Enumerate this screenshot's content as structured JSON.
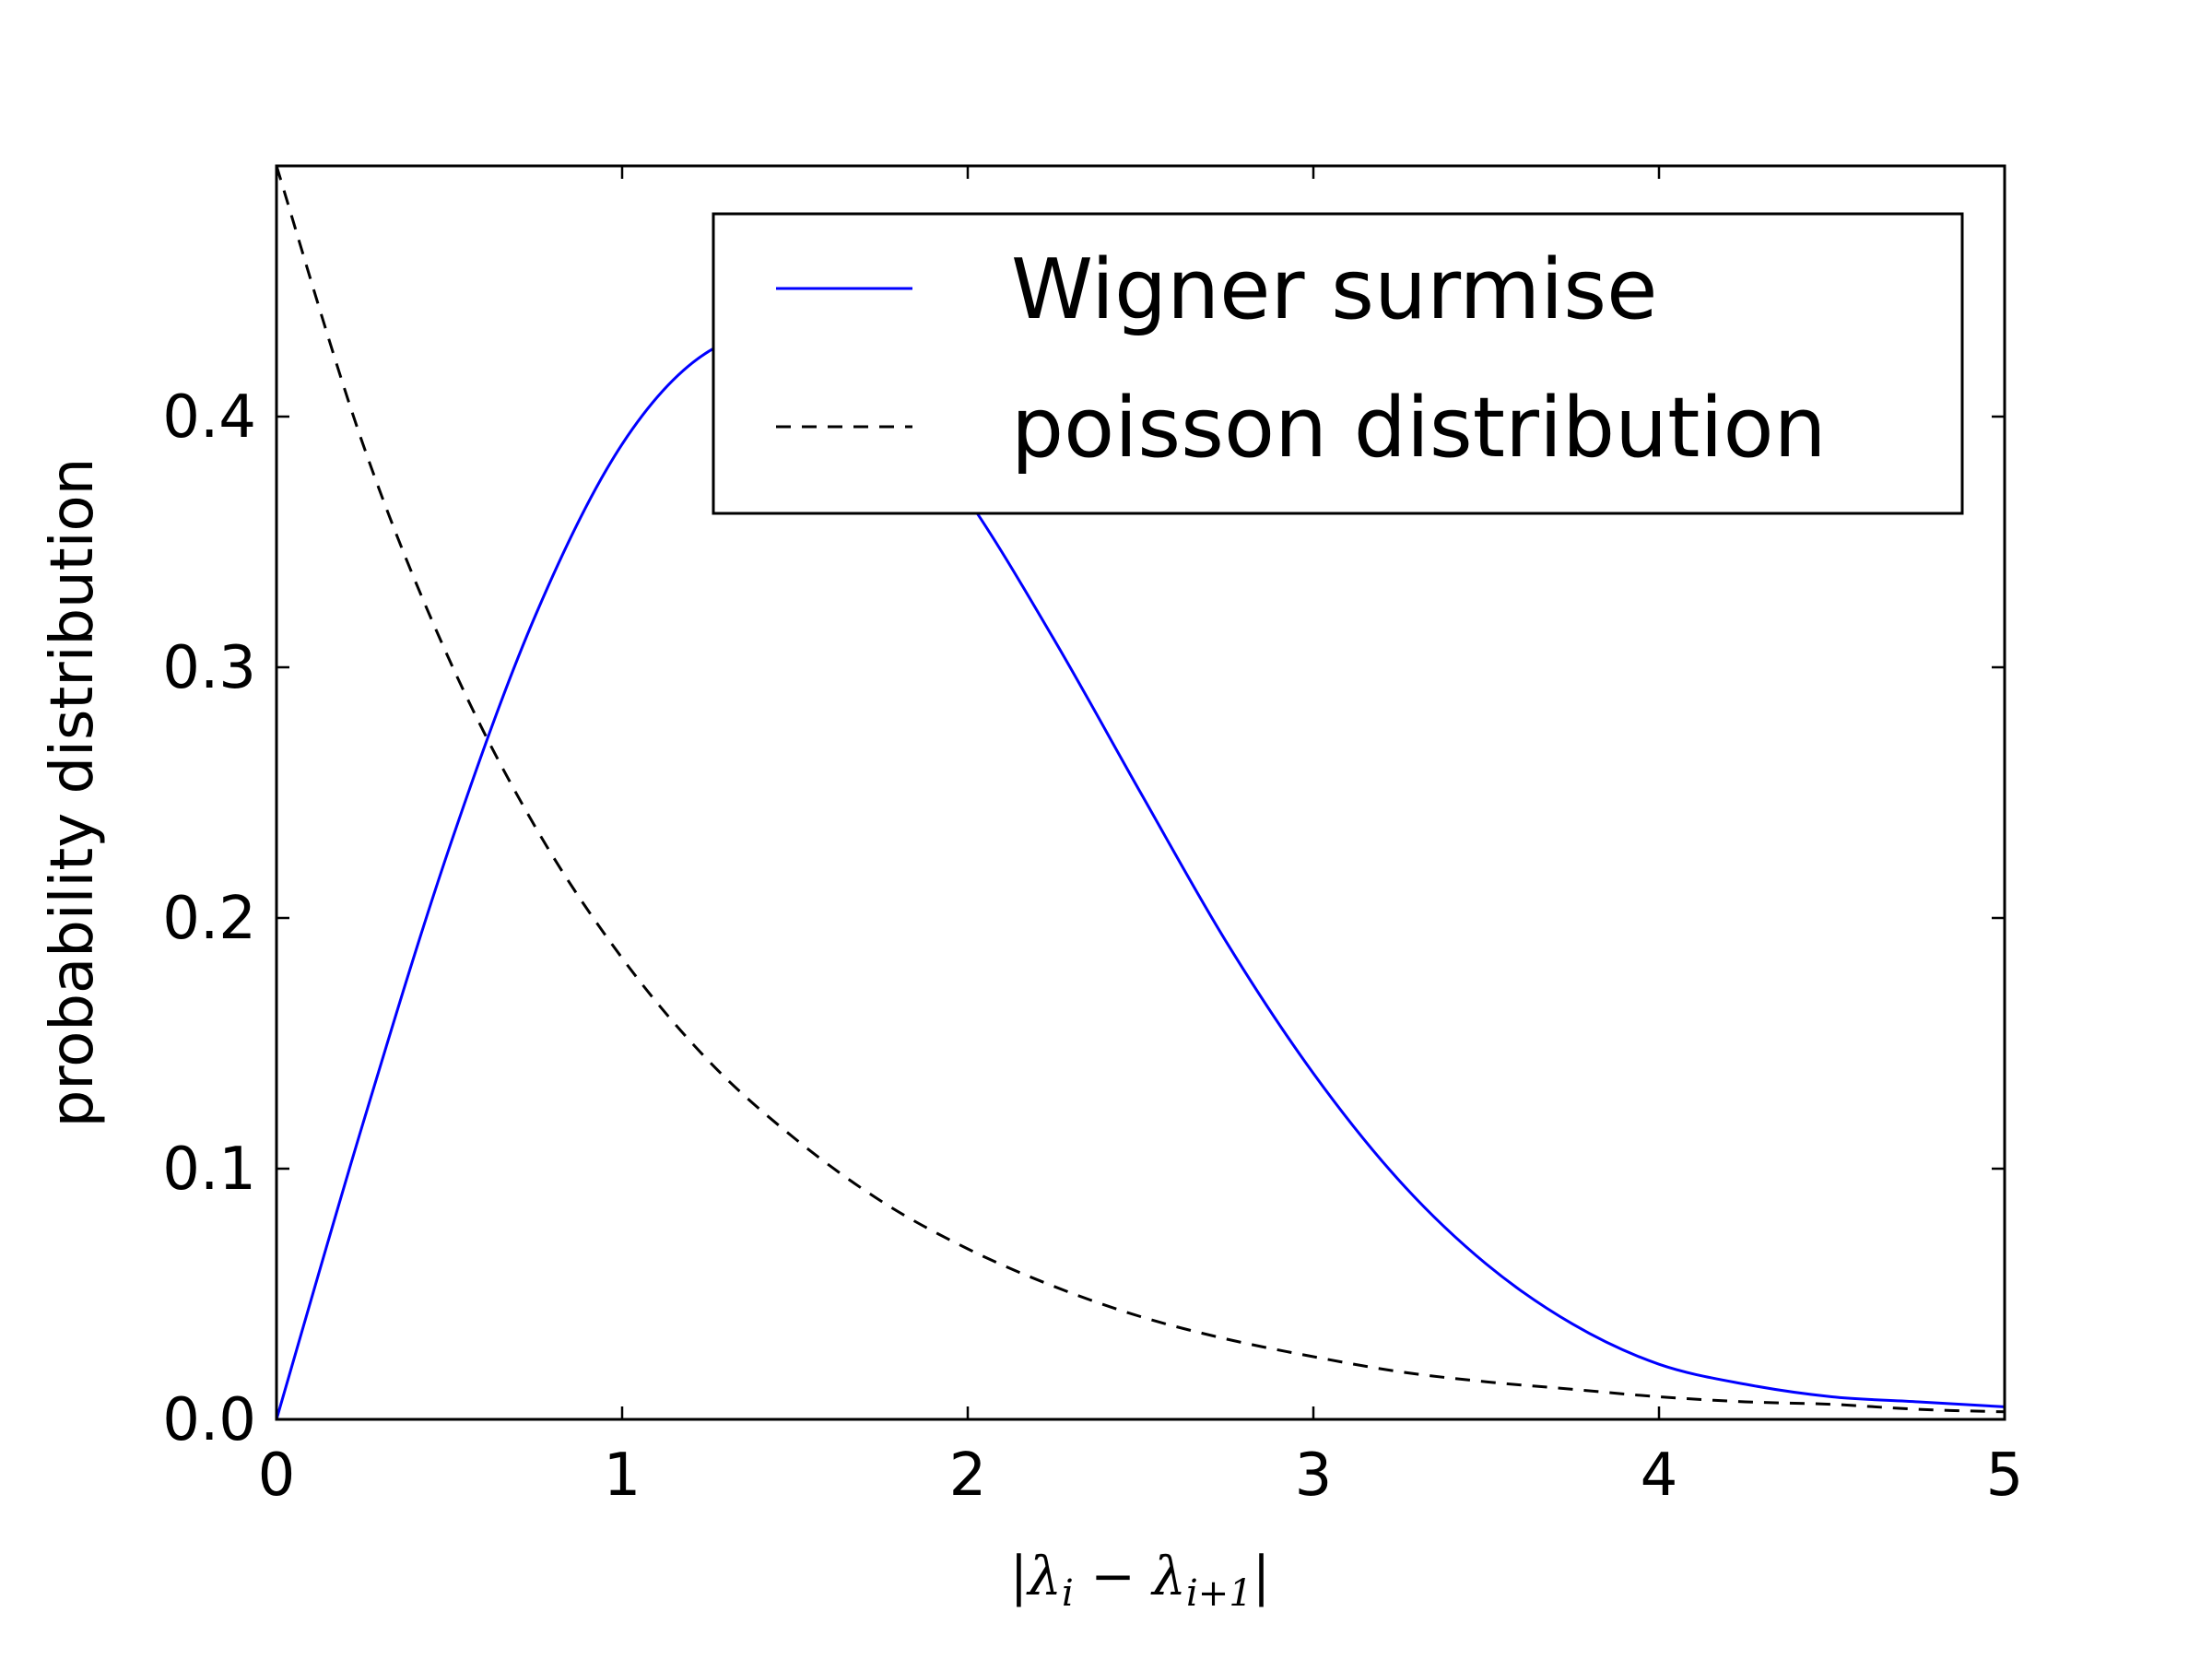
{
  "chart_data": {
    "type": "line",
    "title": "",
    "xlabel_parts": {
      "bar_open": "|",
      "lambda_1": "λ",
      "sub_1": "i",
      "minus": " − ",
      "lambda_2": "λ",
      "sub_2": "i+1",
      "bar_close": "|"
    },
    "ylabel": "probability distribution",
    "xlim": [
      0,
      5
    ],
    "ylim": [
      0,
      0.5
    ],
    "xticks": [
      0,
      1,
      2,
      3,
      4,
      5
    ],
    "xtick_labels": [
      "0",
      "1",
      "2",
      "3",
      "4",
      "5"
    ],
    "yticks": [
      0.0,
      0.1,
      0.2,
      0.3,
      0.4
    ],
    "ytick_labels": [
      "0.0",
      "0.1",
      "0.2",
      "0.3",
      "0.4"
    ],
    "grid": false,
    "legend_position": "upper-right",
    "series": [
      {
        "name": "Wigner surmise",
        "color": "#0000ff",
        "style": "solid",
        "x": [
          0,
          0.25,
          0.5,
          0.75,
          1.0,
          1.25,
          1.5,
          1.75,
          2.0,
          2.25,
          2.5,
          2.75,
          3.0,
          3.25,
          3.5,
          3.75,
          4.0,
          4.25,
          4.5,
          4.75,
          5.0
        ],
        "values": [
          0,
          0.118,
          0.228,
          0.321,
          0.389,
          0.426,
          0.432,
          0.411,
          0.367,
          0.311,
          0.25,
          0.19,
          0.138,
          0.095,
          0.062,
          0.038,
          0.022,
          0.014,
          0.009,
          0.007,
          0.005
        ]
      },
      {
        "name": "poisson distribution",
        "color": "#000000",
        "style": "dashed",
        "x": [
          0,
          0.25,
          0.5,
          0.75,
          1.0,
          1.25,
          1.5,
          1.75,
          2.0,
          2.25,
          2.5,
          2.75,
          3.0,
          3.25,
          3.5,
          3.75,
          4.0,
          4.25,
          4.5,
          4.75,
          5.0
        ],
        "values": [
          0.5,
          0.389,
          0.303,
          0.236,
          0.184,
          0.143,
          0.112,
          0.087,
          0.068,
          0.053,
          0.041,
          0.032,
          0.025,
          0.019,
          0.015,
          0.012,
          0.009,
          0.007,
          0.006,
          0.004,
          0.003
        ]
      }
    ]
  }
}
